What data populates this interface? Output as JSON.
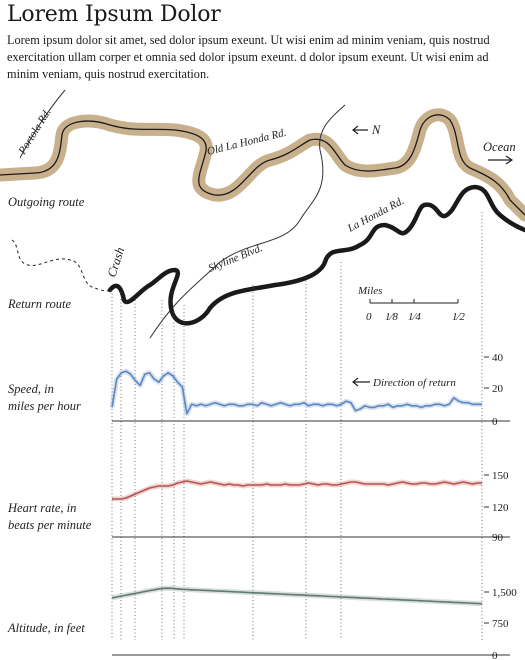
{
  "header": {
    "title": "Lorem Ipsum Dolor",
    "intro": "Lorem ipsum dolor sit amet, sed dolor ipsum exeunt. Ut wisi enim ad minim veniam, quis nostrud exercitation ullam corper et omnia sed dolor ipsum exeunt. d dolor ipsum exeunt. Ut wisi enim ad minim veniam, quis nostrud exercitation."
  },
  "map": {
    "outgoing_label": "Outgoing route",
    "return_label": "Return route",
    "roads": [
      "Portola Rd.",
      "Old La Honda Rd.",
      "La Honda Rd.",
      "Skyline Blvd."
    ],
    "ocean_label": "Ocean",
    "north_label": "N",
    "crash_label": "Crash",
    "colors": {
      "outgoing_casing": "#c9b08c",
      "route": "#1a1a1a"
    }
  },
  "scale_bar": {
    "title": "Miles",
    "ticks": [
      "0",
      "1⁄8",
      "1⁄4",
      "1⁄2"
    ]
  },
  "annotation": {
    "direction": "Direction of return"
  },
  "chart_data": [
    {
      "type": "line",
      "title": "Speed, in miles per hour",
      "color": "#5b86c2",
      "ylim": [
        0,
        40
      ],
      "yticks": [
        "40",
        "20",
        "0"
      ],
      "y": [
        8,
        26,
        30,
        31,
        29,
        25,
        22,
        29,
        30,
        26,
        24,
        28,
        30,
        28,
        24,
        21,
        4,
        10,
        9,
        10,
        9,
        10,
        11,
        10,
        9,
        10,
        10,
        9,
        9,
        10,
        10,
        9,
        11,
        10,
        9,
        10,
        11,
        10,
        9,
        10,
        10,
        11,
        9,
        10,
        10,
        9,
        10,
        10,
        9,
        10,
        12,
        11,
        6,
        7,
        9,
        8,
        8,
        9,
        9,
        10,
        8,
        9,
        9,
        10,
        9,
        9,
        8,
        9,
        9,
        10,
        10,
        9,
        10,
        14,
        12,
        11,
        11,
        10,
        10,
        10
      ]
    },
    {
      "type": "line",
      "title": "Heart rate, in beats per minute",
      "color": "#b9524f",
      "ylim": [
        90,
        165
      ],
      "yticks": [
        "150",
        "120",
        "90"
      ],
      "y": [
        128,
        128,
        128,
        129,
        131,
        133,
        135,
        137,
        139,
        140,
        141,
        141,
        141,
        142,
        144,
        145,
        146,
        145,
        144,
        143,
        144,
        145,
        144,
        143,
        142,
        143,
        142,
        142,
        141,
        142,
        142,
        142,
        142,
        143,
        142,
        142,
        142,
        143,
        142,
        142,
        142,
        143,
        144,
        143,
        142,
        143,
        143,
        142,
        142,
        143,
        144,
        145,
        145,
        144,
        143,
        143,
        143,
        143,
        143,
        142,
        143,
        144,
        145,
        144,
        143,
        143,
        144,
        144,
        143,
        143,
        144,
        145,
        144,
        143,
        144,
        145,
        144,
        143,
        144,
        144
      ]
    },
    {
      "type": "line",
      "title": "Altitude, in feet",
      "color": "#5f7a6f",
      "ylim": [
        0,
        2000
      ],
      "yticks": [
        "1,500",
        "750",
        "0"
      ],
      "y": [
        1270,
        1290,
        1310,
        1330,
        1350,
        1370,
        1390,
        1410,
        1430,
        1450,
        1470,
        1480,
        1485,
        1480,
        1470,
        1460,
        1455,
        1450,
        1445,
        1440,
        1435,
        1430,
        1425,
        1420,
        1415,
        1410,
        1405,
        1400,
        1395,
        1390,
        1385,
        1380,
        1375,
        1370,
        1365,
        1360,
        1355,
        1350,
        1345,
        1340,
        1335,
        1330,
        1325,
        1320,
        1315,
        1310,
        1305,
        1300,
        1295,
        1290,
        1285,
        1280,
        1275,
        1270,
        1265,
        1260,
        1255,
        1250,
        1245,
        1240,
        1235,
        1230,
        1225,
        1220,
        1215,
        1210,
        1205,
        1200,
        1195,
        1190,
        1185,
        1180,
        1175,
        1170,
        1165,
        1160,
        1155,
        1150,
        1145,
        1140
      ]
    }
  ]
}
